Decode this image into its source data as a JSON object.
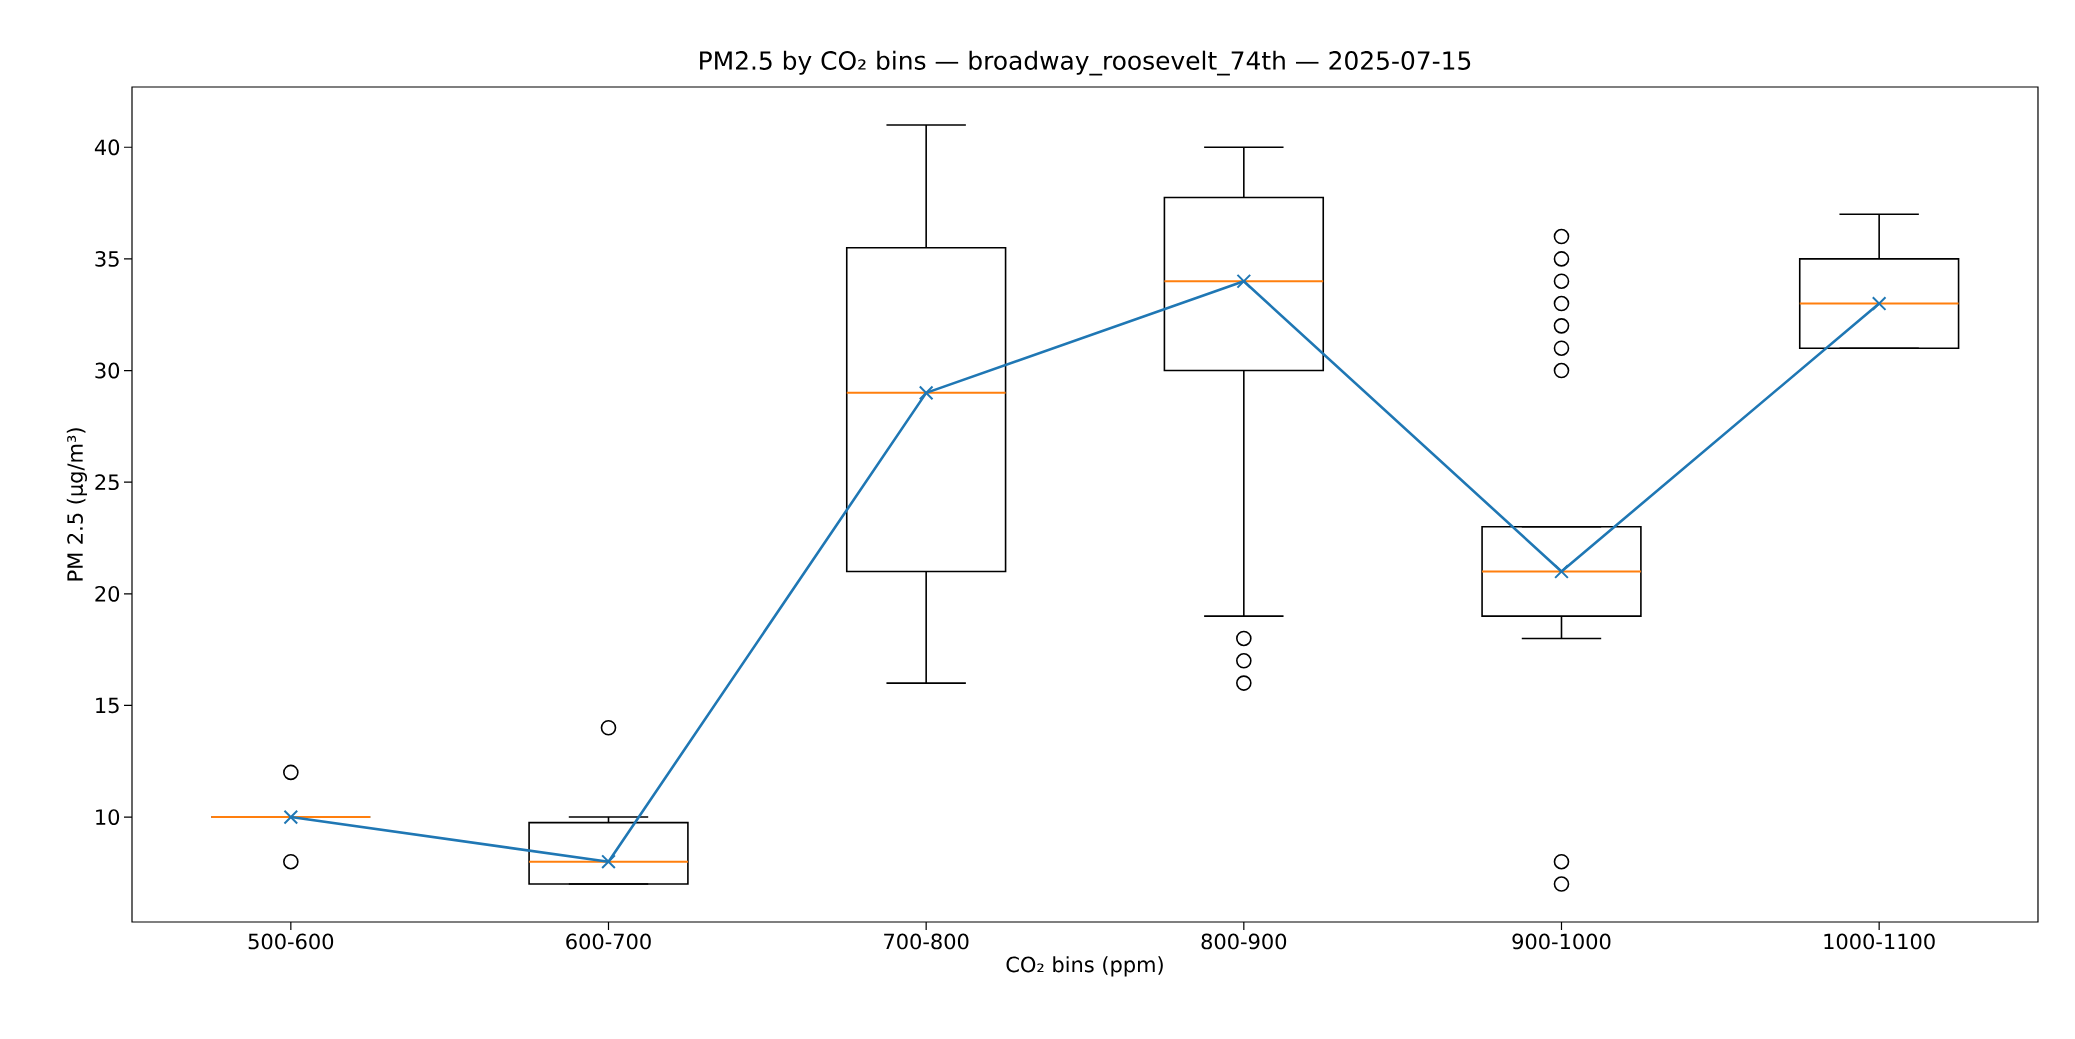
{
  "chart_data": {
    "type": "box",
    "title": "PM2.5 by CO₂ bins — broadway_roosevelt_74th — 2025-07-15",
    "xlabel": "CO₂ bins (ppm)",
    "ylabel": "PM 2.5 (µg/m³)",
    "categories": [
      "500-600",
      "600-700",
      "700-800",
      "800-900",
      "900-1000",
      "1000-1100"
    ],
    "boxes": [
      {
        "low": 10,
        "q1": 10,
        "median": 10,
        "q3": 10,
        "high": 10,
        "outliers": [
          12,
          8
        ]
      },
      {
        "low": 7,
        "q1": 7,
        "median": 8,
        "q3": 9.75,
        "high": 10,
        "outliers": [
          14
        ]
      },
      {
        "low": 16,
        "q1": 21,
        "median": 29,
        "q3": 35.5,
        "high": 41
      },
      {
        "low": 19,
        "q1": 30,
        "median": 34,
        "q3": 37.75,
        "high": 40,
        "outliers": [
          16,
          17,
          18
        ]
      },
      {
        "low": 18,
        "q1": 19,
        "median": 21,
        "q3": 23,
        "high": 23,
        "outliers": [
          7,
          8,
          30,
          31,
          32,
          33,
          34,
          35,
          36
        ]
      },
      {
        "low": 31,
        "q1": 31,
        "median": 33,
        "q3": 35,
        "high": 37
      }
    ],
    "series": [
      {
        "type": "line",
        "color": "#1f77b4",
        "marker": "cross",
        "values": [
          10,
          8,
          29,
          34,
          21,
          33
        ]
      }
    ],
    "ylim": [
      5.3,
      42.7
    ],
    "yticks": [
      10,
      15,
      20,
      25,
      30,
      35,
      40
    ]
  }
}
